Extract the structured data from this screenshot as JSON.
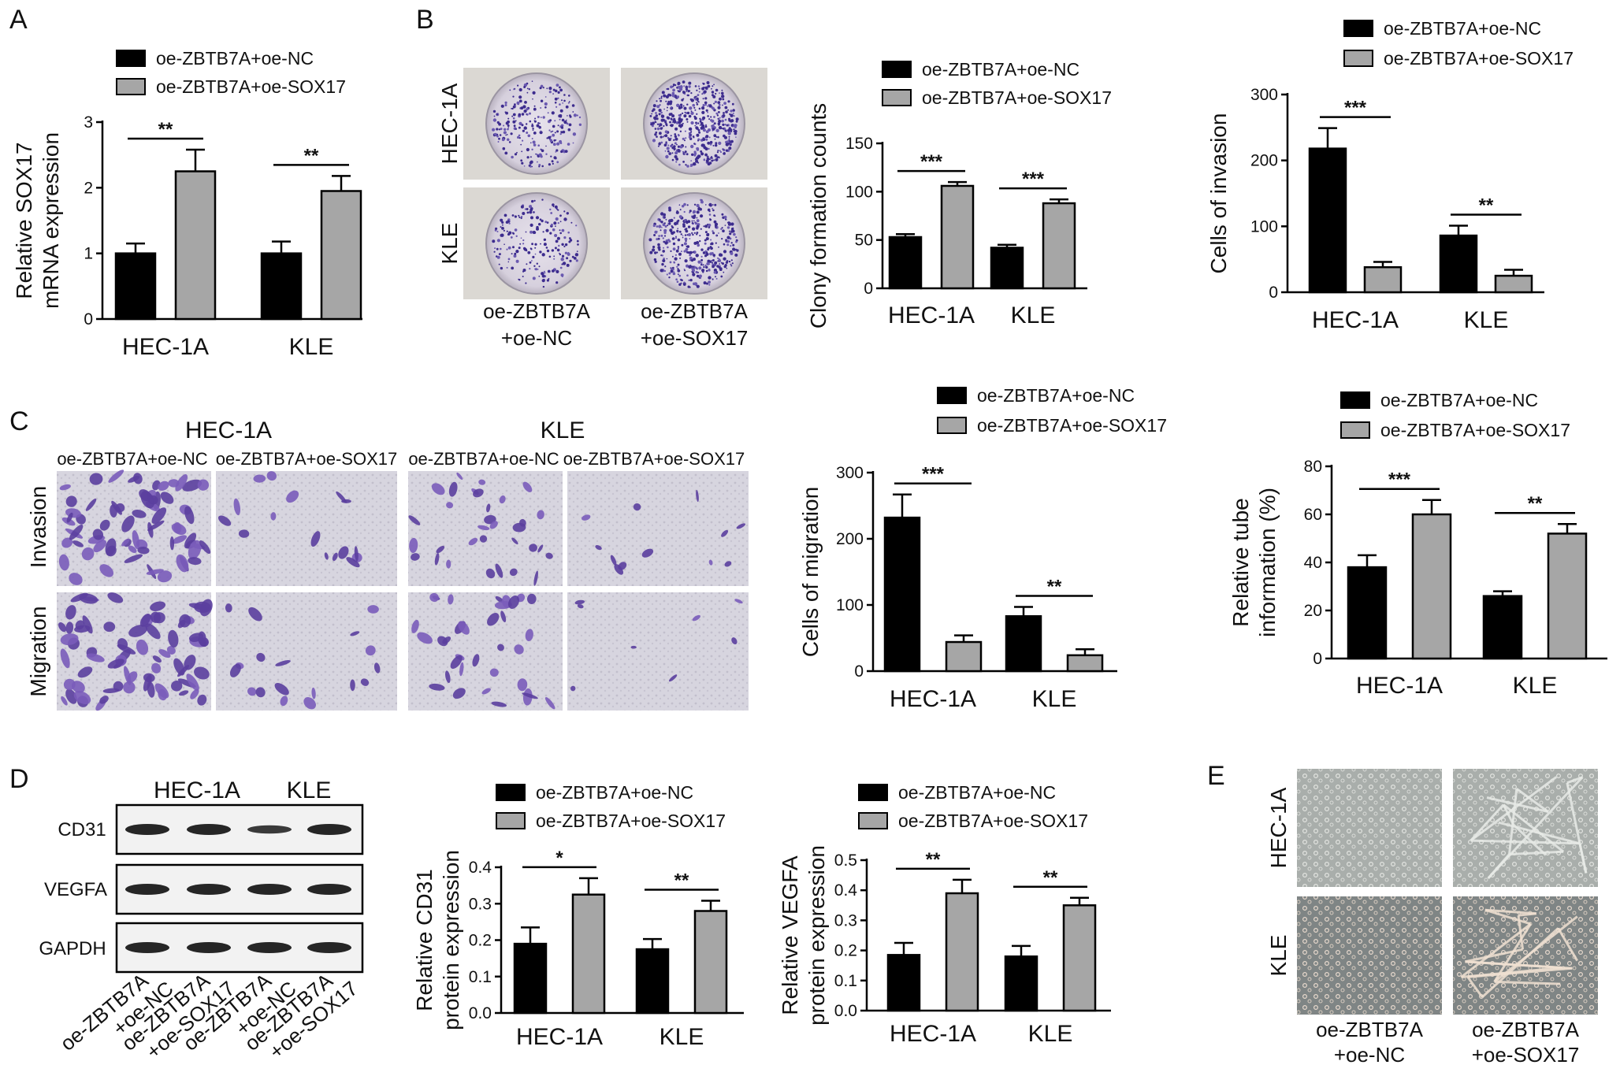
{
  "panels": {
    "A": "A",
    "B": "B",
    "C": "C",
    "D": "D",
    "E": "E"
  },
  "legend": {
    "nc": "oe-ZBTB7A+oe-NC",
    "sox": "oe-ZBTB7A+oe-SOX17"
  },
  "colors": {
    "nc": "#000000",
    "sox": "#a6a6a6"
  },
  "images": {
    "b_row_labels": [
      "HEC-1A",
      "KLE"
    ],
    "b_col_labels": [
      "oe-ZBTB7A",
      "+oe-NC",
      "oe-ZBTB7A",
      "+oe-SOX17"
    ],
    "c_headers": [
      "HEC-1A",
      "KLE"
    ],
    "c_sub": [
      "oe-ZBTB7A+oe-NC",
      "oe-ZBTB7A+oe-SOX17",
      "oe-ZBTB7A+oe-NC",
      "oe-ZBTB7A+oe-SOX17"
    ],
    "c_row_labels": [
      "Invasion",
      "Migration"
    ],
    "d_headers": [
      "HEC-1A",
      "KLE"
    ],
    "d_bands": [
      "CD31",
      "VEGFA",
      "GAPDH"
    ],
    "d_lanes": [
      "oe-ZBTB7A\n+oe-NC",
      "oe-ZBTB7A\n+oe-SOX17",
      "oe-ZBTB7A\n+oe-NC",
      "oe-ZBTB7A\n+oe-SOX17"
    ],
    "e_row_labels": [
      "HEC-1A",
      "KLE"
    ],
    "e_col_labels": [
      "oe-ZBTB7A",
      "+oe-NC",
      "oe-ZBTB7A",
      "+oe-SOX17"
    ]
  },
  "chart_data": [
    {
      "id": "sox17",
      "type": "bar",
      "categories": [
        "HEC-1A",
        "KLE"
      ],
      "ylabel": [
        "Relative SOX17",
        "mRNA expression"
      ],
      "ylim": [
        0,
        3
      ],
      "yticks": [
        0,
        1,
        2,
        3
      ],
      "series": [
        {
          "name": "oe-ZBTB7A+oe-NC",
          "values": [
            1.0,
            1.0
          ],
          "errors": [
            0.15,
            0.18
          ]
        },
        {
          "name": "oe-ZBTB7A+oe-SOX17",
          "values": [
            2.25,
            1.95
          ],
          "errors": [
            0.33,
            0.23
          ]
        }
      ],
      "significance": [
        "**",
        "**"
      ]
    },
    {
      "id": "colony",
      "type": "bar",
      "categories": [
        "HEC-1A",
        "KLE"
      ],
      "ylabel": [
        "Clony formation counts"
      ],
      "ylim": [
        0,
        150
      ],
      "yticks": [
        0,
        50,
        100,
        150
      ],
      "series": [
        {
          "name": "oe-ZBTB7A+oe-NC",
          "values": [
            53,
            42
          ],
          "errors": [
            3,
            3
          ]
        },
        {
          "name": "oe-ZBTB7A+oe-SOX17",
          "values": [
            106,
            88
          ],
          "errors": [
            4,
            4
          ]
        }
      ],
      "significance": [
        "***",
        "***"
      ]
    },
    {
      "id": "invasion",
      "type": "bar",
      "categories": [
        "HEC-1A",
        "KLE"
      ],
      "ylabel": [
        "Cells of invasion"
      ],
      "ylim": [
        0,
        300
      ],
      "yticks": [
        0,
        100,
        200,
        300
      ],
      "series": [
        {
          "name": "oe-ZBTB7A+oe-NC",
          "values": [
            218,
            86
          ],
          "errors": [
            31,
            15
          ]
        },
        {
          "name": "oe-ZBTB7A+oe-SOX17",
          "values": [
            38,
            25
          ],
          "errors": [
            8,
            9
          ]
        }
      ],
      "significance": [
        "***",
        "**"
      ]
    },
    {
      "id": "migration",
      "type": "bar",
      "categories": [
        "HEC-1A",
        "KLE"
      ],
      "ylabel": [
        "Cells of migration"
      ],
      "ylim": [
        0,
        300
      ],
      "yticks": [
        0,
        100,
        200,
        300
      ],
      "series": [
        {
          "name": "oe-ZBTB7A+oe-NC",
          "values": [
            232,
            83
          ],
          "errors": [
            35,
            14
          ]
        },
        {
          "name": "oe-ZBTB7A+oe-SOX17",
          "values": [
            44,
            24
          ],
          "errors": [
            10,
            9
          ]
        }
      ],
      "significance": [
        "***",
        "**"
      ]
    },
    {
      "id": "tube",
      "type": "bar",
      "categories": [
        "HEC-1A",
        "KLE"
      ],
      "ylabel": [
        "Relative tube",
        "information (%)"
      ],
      "ylim": [
        0,
        80
      ],
      "yticks": [
        0,
        20,
        40,
        60,
        80
      ],
      "series": [
        {
          "name": "oe-ZBTB7A+oe-NC",
          "values": [
            38,
            26
          ],
          "errors": [
            5,
            2
          ]
        },
        {
          "name": "oe-ZBTB7A+oe-SOX17",
          "values": [
            60,
            52
          ],
          "errors": [
            6,
            4
          ]
        }
      ],
      "significance": [
        "***",
        "**"
      ]
    },
    {
      "id": "cd31",
      "type": "bar",
      "categories": [
        "HEC-1A",
        "KLE"
      ],
      "ylabel": [
        "Relative CD31",
        "protein expression"
      ],
      "ylim": [
        0,
        0.4
      ],
      "yticks": [
        0.0,
        0.1,
        0.2,
        0.3,
        0.4
      ],
      "series": [
        {
          "name": "oe-ZBTB7A+oe-NC",
          "values": [
            0.19,
            0.175
          ],
          "errors": [
            0.045,
            0.028
          ]
        },
        {
          "name": "oe-ZBTB7A+oe-SOX17",
          "values": [
            0.325,
            0.28
          ],
          "errors": [
            0.045,
            0.028
          ]
        }
      ],
      "significance": [
        "*",
        "**"
      ]
    },
    {
      "id": "vegfa",
      "type": "bar",
      "categories": [
        "HEC-1A",
        "KLE"
      ],
      "ylabel": [
        "Relative VEGFA",
        "protein expression"
      ],
      "ylim": [
        0,
        0.5
      ],
      "yticks": [
        0.0,
        0.1,
        0.2,
        0.3,
        0.4,
        0.5
      ],
      "series": [
        {
          "name": "oe-ZBTB7A+oe-NC",
          "values": [
            0.185,
            0.18
          ],
          "errors": [
            0.04,
            0.035
          ]
        },
        {
          "name": "oe-ZBTB7A+oe-SOX17",
          "values": [
            0.39,
            0.35
          ],
          "errors": [
            0.045,
            0.025
          ]
        }
      ],
      "significance": [
        "**",
        "**"
      ]
    }
  ]
}
